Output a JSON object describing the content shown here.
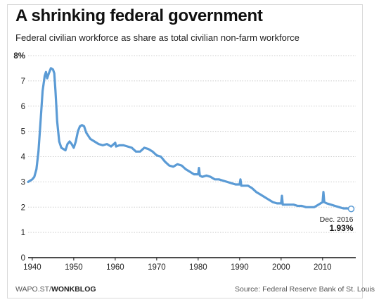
{
  "header": {
    "title": "A shrinking federal government",
    "subtitle": "Federal civilian workforce as share as total civilian non-farm workforce"
  },
  "footer": {
    "credit_prefix": "WAPO.ST/",
    "credit_brand": "WONKBLOG",
    "source": "Source: Federal Reserve Bank of St. Louis"
  },
  "colors": {
    "line": "#5b9bd5",
    "grid": "#cfcfcf",
    "axis": "#111111"
  },
  "chart_data": {
    "type": "line",
    "title": "A shrinking federal government",
    "subtitle": "Federal civilian workforce as share as total civilian non-farm workforce",
    "xlabel": "",
    "ylabel": "",
    "xlim": [
      1939,
      2018
    ],
    "ylim": [
      0,
      8
    ],
    "y_ticks": [
      "0",
      "1",
      "2",
      "3",
      "4",
      "5",
      "6",
      "7",
      "8%"
    ],
    "x_ticks": [
      "1940",
      "1950",
      "1960",
      "1970",
      "1980",
      "1990",
      "2000",
      "2010"
    ],
    "grid": "horizontal",
    "annotation": {
      "label": "Dec. 2016",
      "value_label": "1.93%",
      "x": 2016.9,
      "y": 1.93
    },
    "series": [
      {
        "values": [
          [
            1939.0,
            3.0
          ],
          [
            1939.5,
            3.05
          ],
          [
            1940.0,
            3.1
          ],
          [
            1940.5,
            3.2
          ],
          [
            1941.0,
            3.5
          ],
          [
            1941.5,
            4.2
          ],
          [
            1942.0,
            5.4
          ],
          [
            1942.5,
            6.6
          ],
          [
            1943.0,
            7.2
          ],
          [
            1943.3,
            7.35
          ],
          [
            1943.6,
            7.1
          ],
          [
            1944.0,
            7.3
          ],
          [
            1944.5,
            7.5
          ],
          [
            1945.0,
            7.45
          ],
          [
            1945.3,
            7.3
          ],
          [
            1945.6,
            6.6
          ],
          [
            1946.0,
            5.4
          ],
          [
            1946.5,
            4.6
          ],
          [
            1947.0,
            4.35
          ],
          [
            1948.0,
            4.25
          ],
          [
            1948.5,
            4.5
          ],
          [
            1949.0,
            4.6
          ],
          [
            1949.5,
            4.5
          ],
          [
            1950.0,
            4.35
          ],
          [
            1950.5,
            4.6
          ],
          [
            1951.0,
            5.0
          ],
          [
            1951.5,
            5.2
          ],
          [
            1952.0,
            5.25
          ],
          [
            1952.5,
            5.2
          ],
          [
            1953.0,
            4.95
          ],
          [
            1954.0,
            4.7
          ],
          [
            1955.0,
            4.6
          ],
          [
            1956.0,
            4.5
          ],
          [
            1957.0,
            4.45
          ],
          [
            1958.0,
            4.5
          ],
          [
            1959.0,
            4.4
          ],
          [
            1960.0,
            4.55
          ],
          [
            1960.2,
            4.4
          ],
          [
            1961.0,
            4.45
          ],
          [
            1962.0,
            4.45
          ],
          [
            1963.0,
            4.4
          ],
          [
            1964.0,
            4.35
          ],
          [
            1965.0,
            4.2
          ],
          [
            1966.0,
            4.2
          ],
          [
            1967.0,
            4.35
          ],
          [
            1968.0,
            4.3
          ],
          [
            1969.0,
            4.2
          ],
          [
            1970.0,
            4.05
          ],
          [
            1971.0,
            4.0
          ],
          [
            1972.0,
            3.8
          ],
          [
            1973.0,
            3.65
          ],
          [
            1974.0,
            3.6
          ],
          [
            1975.0,
            3.7
          ],
          [
            1976.0,
            3.65
          ],
          [
            1977.0,
            3.5
          ],
          [
            1978.0,
            3.4
          ],
          [
            1979.0,
            3.3
          ],
          [
            1980.0,
            3.3
          ],
          [
            1980.2,
            3.55
          ],
          [
            1980.4,
            3.25
          ],
          [
            1981.0,
            3.2
          ],
          [
            1982.0,
            3.25
          ],
          [
            1983.0,
            3.2
          ],
          [
            1984.0,
            3.1
          ],
          [
            1985.0,
            3.1
          ],
          [
            1986.0,
            3.05
          ],
          [
            1987.0,
            3.0
          ],
          [
            1988.0,
            2.95
          ],
          [
            1989.0,
            2.9
          ],
          [
            1990.0,
            2.9
          ],
          [
            1990.2,
            3.1
          ],
          [
            1990.4,
            2.85
          ],
          [
            1991.0,
            2.85
          ],
          [
            1992.0,
            2.85
          ],
          [
            1993.0,
            2.75
          ],
          [
            1994.0,
            2.6
          ],
          [
            1995.0,
            2.5
          ],
          [
            1996.0,
            2.4
          ],
          [
            1997.0,
            2.3
          ],
          [
            1998.0,
            2.2
          ],
          [
            1999.0,
            2.15
          ],
          [
            2000.0,
            2.15
          ],
          [
            2000.2,
            2.45
          ],
          [
            2000.4,
            2.1
          ],
          [
            2001.0,
            2.1
          ],
          [
            2002.0,
            2.1
          ],
          [
            2003.0,
            2.1
          ],
          [
            2004.0,
            2.05
          ],
          [
            2005.0,
            2.05
          ],
          [
            2006.0,
            2.0
          ],
          [
            2007.0,
            2.0
          ],
          [
            2008.0,
            2.0
          ],
          [
            2009.0,
            2.1
          ],
          [
            2010.0,
            2.2
          ],
          [
            2010.2,
            2.6
          ],
          [
            2010.4,
            2.2
          ],
          [
            2011.0,
            2.15
          ],
          [
            2012.0,
            2.1
          ],
          [
            2013.0,
            2.05
          ],
          [
            2014.0,
            2.0
          ],
          [
            2015.0,
            1.95
          ],
          [
            2016.0,
            1.95
          ],
          [
            2016.9,
            1.93
          ]
        ]
      }
    ]
  }
}
